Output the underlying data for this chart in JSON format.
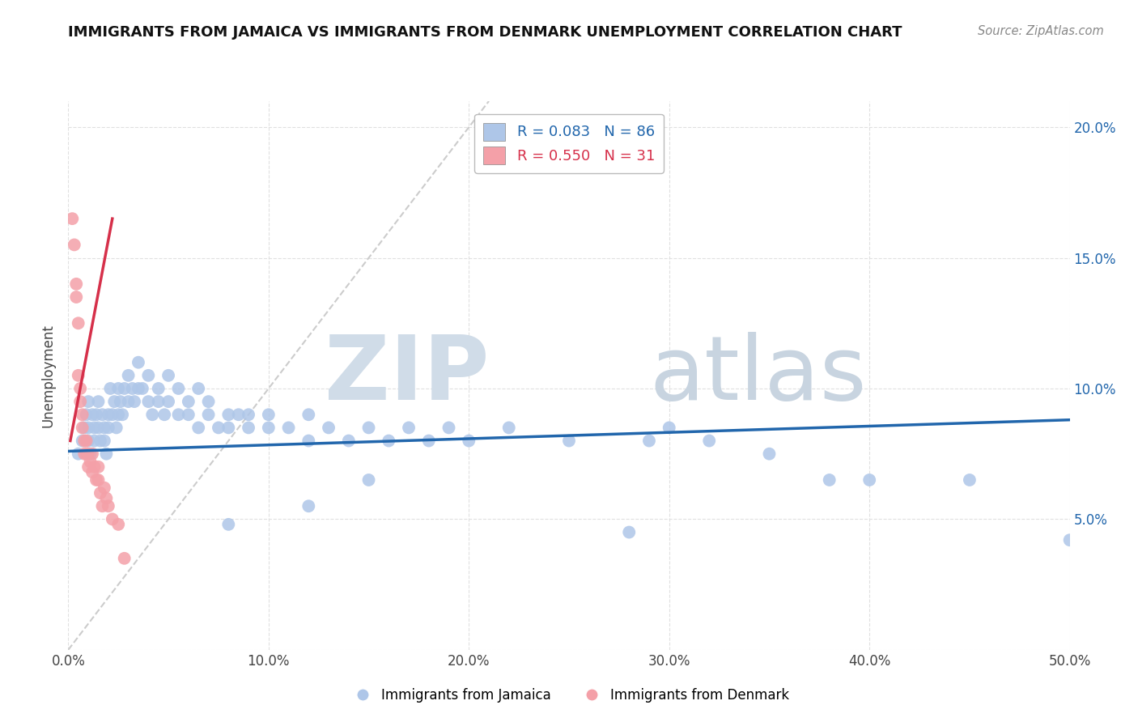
{
  "title": "IMMIGRANTS FROM JAMAICA VS IMMIGRANTS FROM DENMARK UNEMPLOYMENT CORRELATION CHART",
  "source": "Source: ZipAtlas.com",
  "ylabel_label": "Unemployment",
  "xlim": [
    0.0,
    0.5
  ],
  "ylim": [
    0.0,
    0.21
  ],
  "xticks": [
    0.0,
    0.1,
    0.2,
    0.3,
    0.4,
    0.5
  ],
  "xtick_labels": [
    "0.0%",
    "10.0%",
    "20.0%",
    "30.0%",
    "40.0%",
    "50.0%"
  ],
  "yticks_left": [
    0.0,
    0.05,
    0.1,
    0.15,
    0.2
  ],
  "ytick_labels_left": [
    "",
    "",
    "",
    "",
    ""
  ],
  "yticks_right": [
    0.0,
    0.05,
    0.1,
    0.15,
    0.2
  ],
  "ytick_labels_right": [
    "",
    "5.0%",
    "10.0%",
    "15.0%",
    "20.0%"
  ],
  "jamaica_color": "#aec6e8",
  "denmark_color": "#f4a0a8",
  "jamaica_R": 0.083,
  "jamaica_N": 86,
  "denmark_R": 0.55,
  "denmark_N": 31,
  "jamaica_line_color": "#2166ac",
  "denmark_line_color": "#d6304a",
  "diagonal_color": "#cccccc",
  "jamaica_points": [
    [
      0.005,
      0.075
    ],
    [
      0.007,
      0.08
    ],
    [
      0.008,
      0.085
    ],
    [
      0.009,
      0.09
    ],
    [
      0.01,
      0.095
    ],
    [
      0.01,
      0.085
    ],
    [
      0.01,
      0.08
    ],
    [
      0.011,
      0.075
    ],
    [
      0.012,
      0.09
    ],
    [
      0.013,
      0.085
    ],
    [
      0.013,
      0.08
    ],
    [
      0.014,
      0.09
    ],
    [
      0.015,
      0.095
    ],
    [
      0.015,
      0.085
    ],
    [
      0.016,
      0.08
    ],
    [
      0.017,
      0.09
    ],
    [
      0.018,
      0.085
    ],
    [
      0.018,
      0.08
    ],
    [
      0.019,
      0.075
    ],
    [
      0.02,
      0.085
    ],
    [
      0.02,
      0.09
    ],
    [
      0.021,
      0.1
    ],
    [
      0.022,
      0.09
    ],
    [
      0.023,
      0.095
    ],
    [
      0.024,
      0.085
    ],
    [
      0.025,
      0.1
    ],
    [
      0.025,
      0.09
    ],
    [
      0.026,
      0.095
    ],
    [
      0.027,
      0.09
    ],
    [
      0.028,
      0.1
    ],
    [
      0.03,
      0.095
    ],
    [
      0.03,
      0.105
    ],
    [
      0.032,
      0.1
    ],
    [
      0.033,
      0.095
    ],
    [
      0.035,
      0.11
    ],
    [
      0.035,
      0.1
    ],
    [
      0.037,
      0.1
    ],
    [
      0.04,
      0.095
    ],
    [
      0.04,
      0.105
    ],
    [
      0.042,
      0.09
    ],
    [
      0.045,
      0.1
    ],
    [
      0.045,
      0.095
    ],
    [
      0.048,
      0.09
    ],
    [
      0.05,
      0.095
    ],
    [
      0.05,
      0.105
    ],
    [
      0.055,
      0.09
    ],
    [
      0.055,
      0.1
    ],
    [
      0.06,
      0.095
    ],
    [
      0.06,
      0.09
    ],
    [
      0.065,
      0.1
    ],
    [
      0.065,
      0.085
    ],
    [
      0.07,
      0.09
    ],
    [
      0.07,
      0.095
    ],
    [
      0.075,
      0.085
    ],
    [
      0.08,
      0.09
    ],
    [
      0.08,
      0.085
    ],
    [
      0.085,
      0.09
    ],
    [
      0.09,
      0.085
    ],
    [
      0.09,
      0.09
    ],
    [
      0.1,
      0.085
    ],
    [
      0.1,
      0.09
    ],
    [
      0.11,
      0.085
    ],
    [
      0.12,
      0.08
    ],
    [
      0.12,
      0.09
    ],
    [
      0.13,
      0.085
    ],
    [
      0.14,
      0.08
    ],
    [
      0.15,
      0.085
    ],
    [
      0.15,
      0.065
    ],
    [
      0.16,
      0.08
    ],
    [
      0.17,
      0.085
    ],
    [
      0.18,
      0.08
    ],
    [
      0.19,
      0.085
    ],
    [
      0.2,
      0.08
    ],
    [
      0.22,
      0.085
    ],
    [
      0.25,
      0.08
    ],
    [
      0.28,
      0.045
    ],
    [
      0.3,
      0.085
    ],
    [
      0.32,
      0.08
    ],
    [
      0.35,
      0.075
    ],
    [
      0.38,
      0.065
    ],
    [
      0.45,
      0.065
    ],
    [
      0.5,
      0.042
    ],
    [
      0.08,
      0.048
    ],
    [
      0.12,
      0.055
    ],
    [
      0.29,
      0.08
    ],
    [
      0.4,
      0.065
    ]
  ],
  "denmark_points": [
    [
      0.002,
      0.165
    ],
    [
      0.003,
      0.155
    ],
    [
      0.004,
      0.14
    ],
    [
      0.004,
      0.135
    ],
    [
      0.005,
      0.125
    ],
    [
      0.005,
      0.105
    ],
    [
      0.006,
      0.1
    ],
    [
      0.006,
      0.095
    ],
    [
      0.007,
      0.09
    ],
    [
      0.007,
      0.085
    ],
    [
      0.008,
      0.08
    ],
    [
      0.008,
      0.075
    ],
    [
      0.009,
      0.08
    ],
    [
      0.009,
      0.075
    ],
    [
      0.01,
      0.075
    ],
    [
      0.01,
      0.07
    ],
    [
      0.011,
      0.072
    ],
    [
      0.012,
      0.068
    ],
    [
      0.012,
      0.075
    ],
    [
      0.013,
      0.07
    ],
    [
      0.014,
      0.065
    ],
    [
      0.015,
      0.07
    ],
    [
      0.015,
      0.065
    ],
    [
      0.016,
      0.06
    ],
    [
      0.017,
      0.055
    ],
    [
      0.018,
      0.062
    ],
    [
      0.019,
      0.058
    ],
    [
      0.02,
      0.055
    ],
    [
      0.022,
      0.05
    ],
    [
      0.025,
      0.048
    ],
    [
      0.028,
      0.035
    ]
  ],
  "denmark_line_x": [
    0.001,
    0.022
  ],
  "denmark_line_y": [
    0.08,
    0.165
  ],
  "jamaica_line_x": [
    0.0,
    0.5
  ],
  "jamaica_line_y": [
    0.076,
    0.088
  ]
}
